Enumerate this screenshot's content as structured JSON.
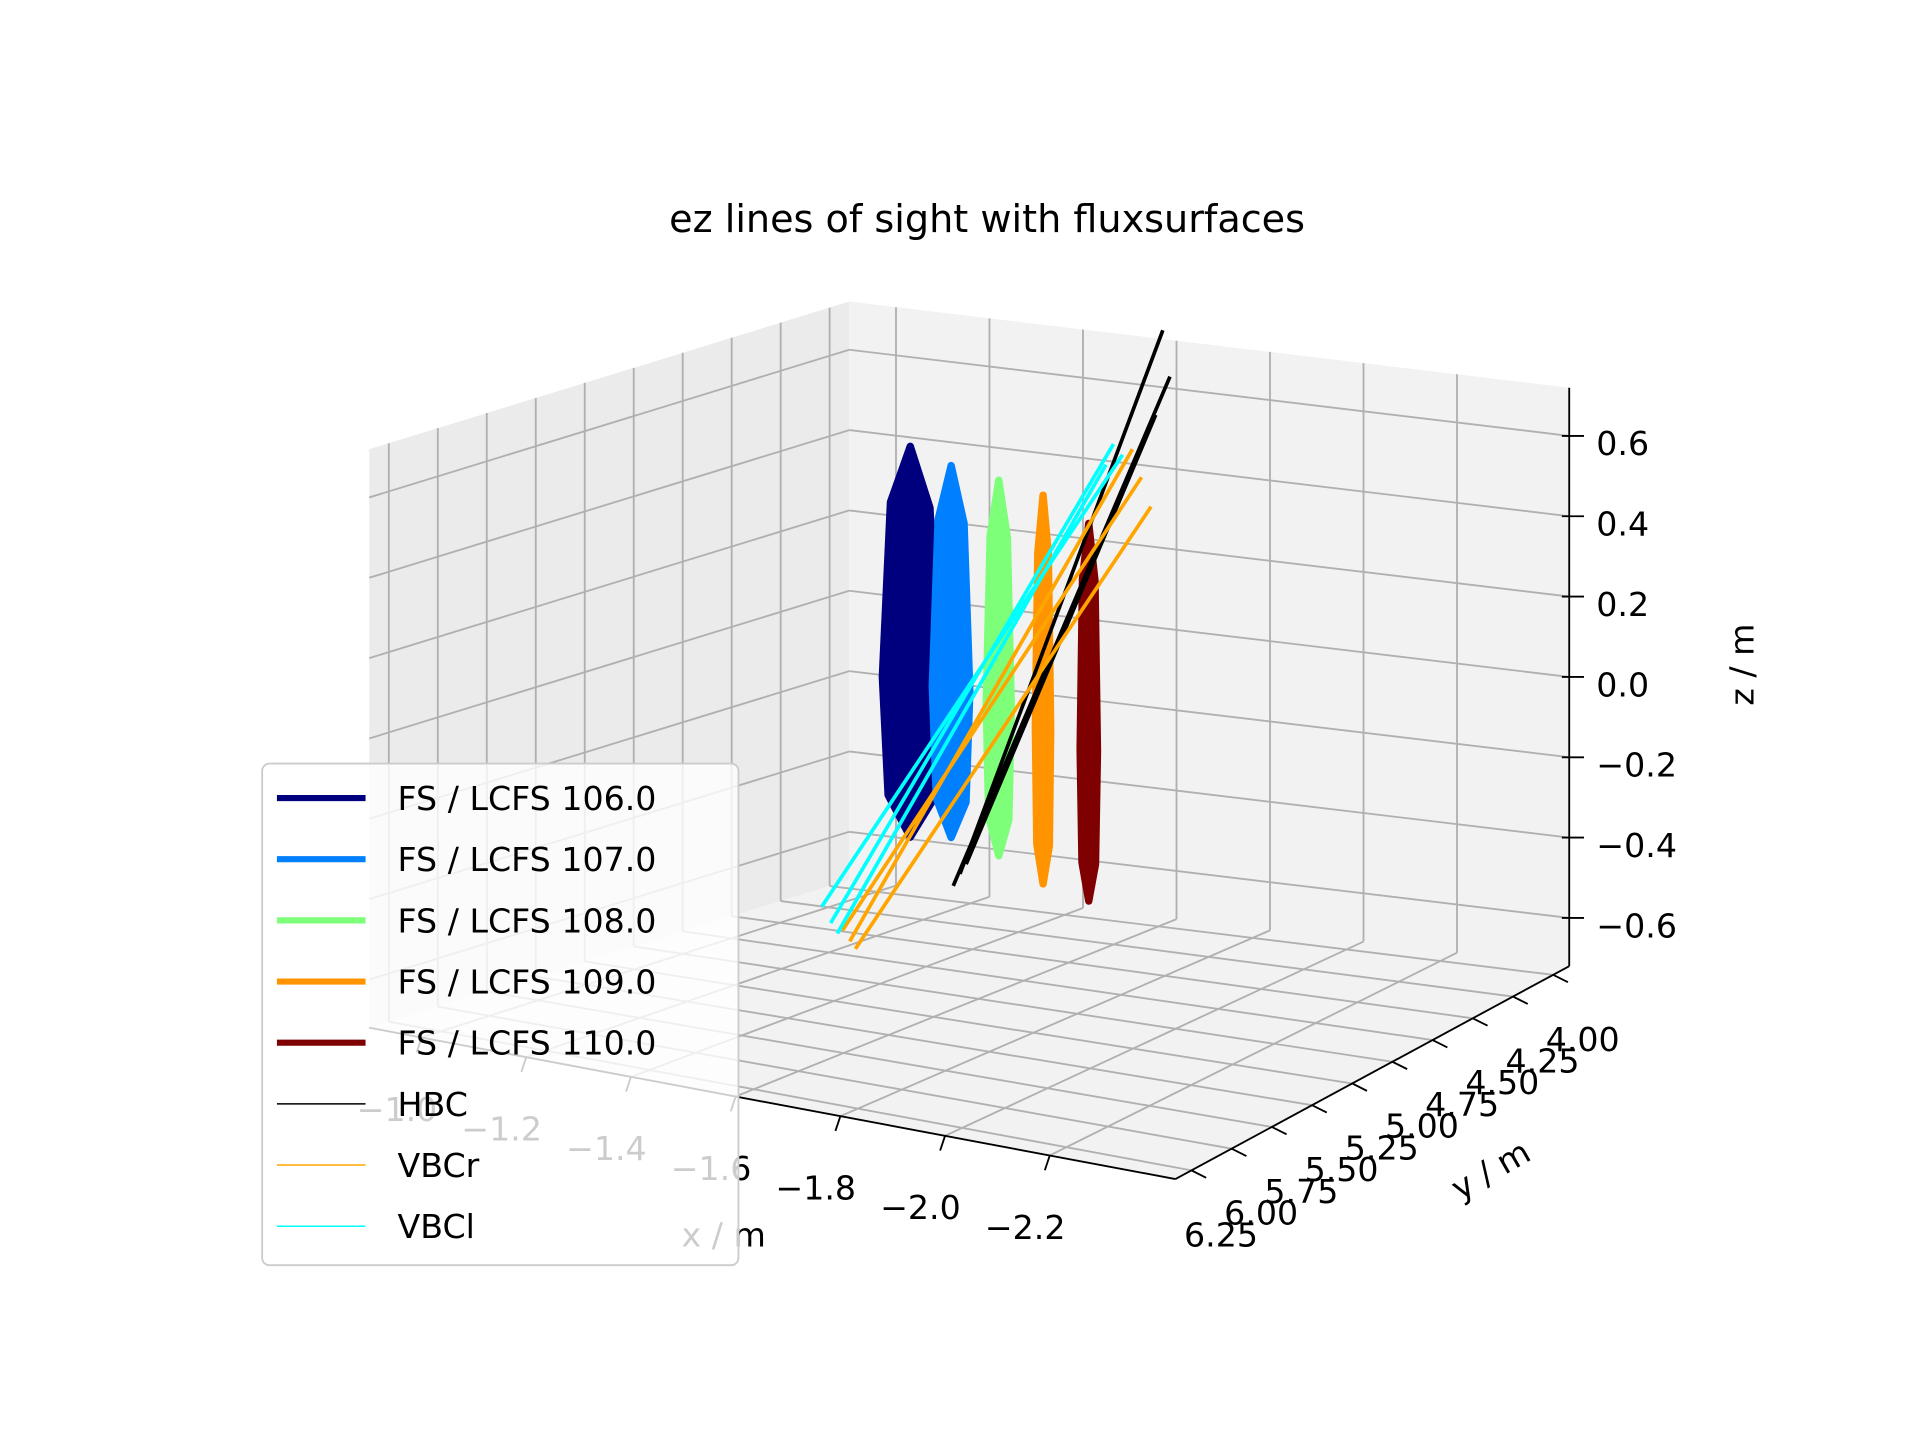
{
  "chart_data": {
    "type": "line3d",
    "title": "ez lines of sight with fluxsurfaces",
    "x_label": "x / m",
    "y_label": "y / m",
    "z_label": "z / m",
    "xlim": [
      -2.44,
      -0.9
    ],
    "ylim": [
      3.9,
      6.35
    ],
    "zlim": [
      -0.72,
      0.72
    ],
    "xticks": [
      {
        "value": -1.0,
        "label": "−1.0"
      },
      {
        "value": -1.2,
        "label": "−1.2"
      },
      {
        "value": -1.4,
        "label": "−1.4"
      },
      {
        "value": -1.6,
        "label": "−1.6"
      },
      {
        "value": -1.8,
        "label": "−1.8"
      },
      {
        "value": -2.0,
        "label": "−2.0"
      },
      {
        "value": -2.2,
        "label": "−2.2"
      }
    ],
    "yticks": [
      {
        "value": 4.0,
        "label": "4.00"
      },
      4.25,
      {
        "value": 4.5,
        "label": "4.50"
      },
      4.75,
      {
        "value": 5.0,
        "label": "5.00"
      },
      5.25,
      {
        "value": 5.5,
        "label": "5.50"
      },
      5.75,
      {
        "value": 6.0,
        "label": "6.00"
      },
      6.25
    ],
    "zticks": [
      0.6,
      0.4,
      0.2,
      {
        "value": 0,
        "label": "0.0"
      },
      {
        "value": -0.2,
        "label": "−0.2"
      },
      {
        "value": -0.4,
        "label": "−0.4"
      },
      {
        "value": -0.6,
        "label": "−0.6"
      }
    ],
    "grid": true,
    "legend": "lower left",
    "series": [
      {
        "name": "FS / LCFS 106.0",
        "color": "#00007f",
        "closed": true,
        "x": [
          -1.271,
          -1.23,
          -1.213,
          -1.225,
          -1.271,
          -1.317,
          -1.329,
          -1.312
        ],
        "y": [
          4.5,
          4.5,
          4.5,
          4.5,
          4.5,
          4.5,
          4.5,
          4.5
        ],
        "z": [
          0.511,
          0.365,
          -0.073,
          -0.365,
          -0.462,
          -0.365,
          -0.073,
          0.365
        ]
      },
      {
        "name": "FS / LCFS 107.0",
        "color": "#0080ff",
        "closed": true,
        "x": [
          -1.356,
          -1.329,
          -1.317,
          -1.325,
          -1.356,
          -1.387,
          -1.395,
          -1.383
        ],
        "y": [
          4.5,
          4.5,
          4.5,
          4.5,
          4.5,
          4.5,
          4.5,
          4.5
        ],
        "z": [
          0.477,
          0.338,
          -0.079,
          -0.356,
          -0.449,
          -0.356,
          -0.079,
          0.338
        ]
      },
      {
        "name": "FS / LCFS 108.0",
        "color": "#7dff7a",
        "closed": true,
        "x": [
          -1.455,
          -1.437,
          -1.429,
          -1.434,
          -1.455,
          -1.476,
          -1.481,
          -1.473
        ],
        "y": [
          4.5,
          4.5,
          4.5,
          4.5,
          4.5,
          4.5,
          4.5,
          4.5
        ],
        "z": [
          0.457,
          0.317,
          -0.104,
          -0.385,
          -0.478,
          -0.385,
          -0.104,
          0.317
        ]
      },
      {
        "name": "FS / LCFS 109.0",
        "color": "#ff9400",
        "closed": true,
        "x": [
          -1.547,
          -1.536,
          -1.531,
          -1.534,
          -1.547,
          -1.56,
          -1.563,
          -1.558
        ],
        "y": [
          4.5,
          4.5,
          4.5,
          4.5,
          4.5,
          4.5,
          4.5,
          4.5
        ],
        "z": [
          0.435,
          0.29,
          -0.146,
          -0.436,
          -0.533,
          -0.436,
          -0.146,
          0.29
        ]
      },
      {
        "name": "FS / LCFS 110.0",
        "color": "#7f0000",
        "closed": true,
        "x": [
          -1.642,
          -1.629,
          -1.624,
          -1.628,
          -1.642,
          -1.656,
          -1.66,
          -1.655
        ],
        "y": [
          4.5,
          4.5,
          4.5,
          4.5,
          4.5,
          4.5,
          4.5,
          4.5
        ],
        "z": [
          0.38,
          0.239,
          -0.184,
          -0.466,
          -0.56,
          -0.466,
          -0.184,
          0.239
        ]
      },
      {
        "name": "HBC",
        "color": "#000000",
        "closed": false,
        "x": [
          -1.913,
          -1.685,
          null,
          -1.9,
          -1.7,
          null,
          -1.925,
          -1.67
        ],
        "y": [
          6.0,
          4.2,
          null,
          6.0,
          4.2,
          null,
          6.0,
          4.2
        ],
        "z": [
          -0.157,
          0.813,
          null,
          -0.19,
          0.7,
          null,
          -0.13,
          0.6
        ]
      },
      {
        "name": "VBCr",
        "color": "#ffa500",
        "closed": false,
        "x": [
          -1.699,
          -1.621,
          null,
          -1.685,
          -1.64,
          null,
          -1.71,
          -1.66
        ],
        "y": [
          6.0,
          4.2,
          null,
          6.0,
          4.2,
          null,
          6.0,
          4.2
        ],
        "z": [
          -0.374,
          0.507,
          null,
          -0.35,
          0.44,
          null,
          -0.39,
          0.37
        ]
      },
      {
        "name": "VBCl",
        "color": "#00ffff",
        "closed": false,
        "x": [
          -1.662,
          -1.581,
          null,
          -1.645,
          -1.6,
          null,
          -1.675,
          -1.565
        ],
        "y": [
          6.0,
          4.2,
          null,
          6.0,
          4.2,
          null,
          6.0,
          4.2
        ],
        "z": [
          -0.337,
          0.514,
          null,
          -0.3,
          0.49,
          null,
          -0.36,
          0.46
        ]
      }
    ]
  }
}
